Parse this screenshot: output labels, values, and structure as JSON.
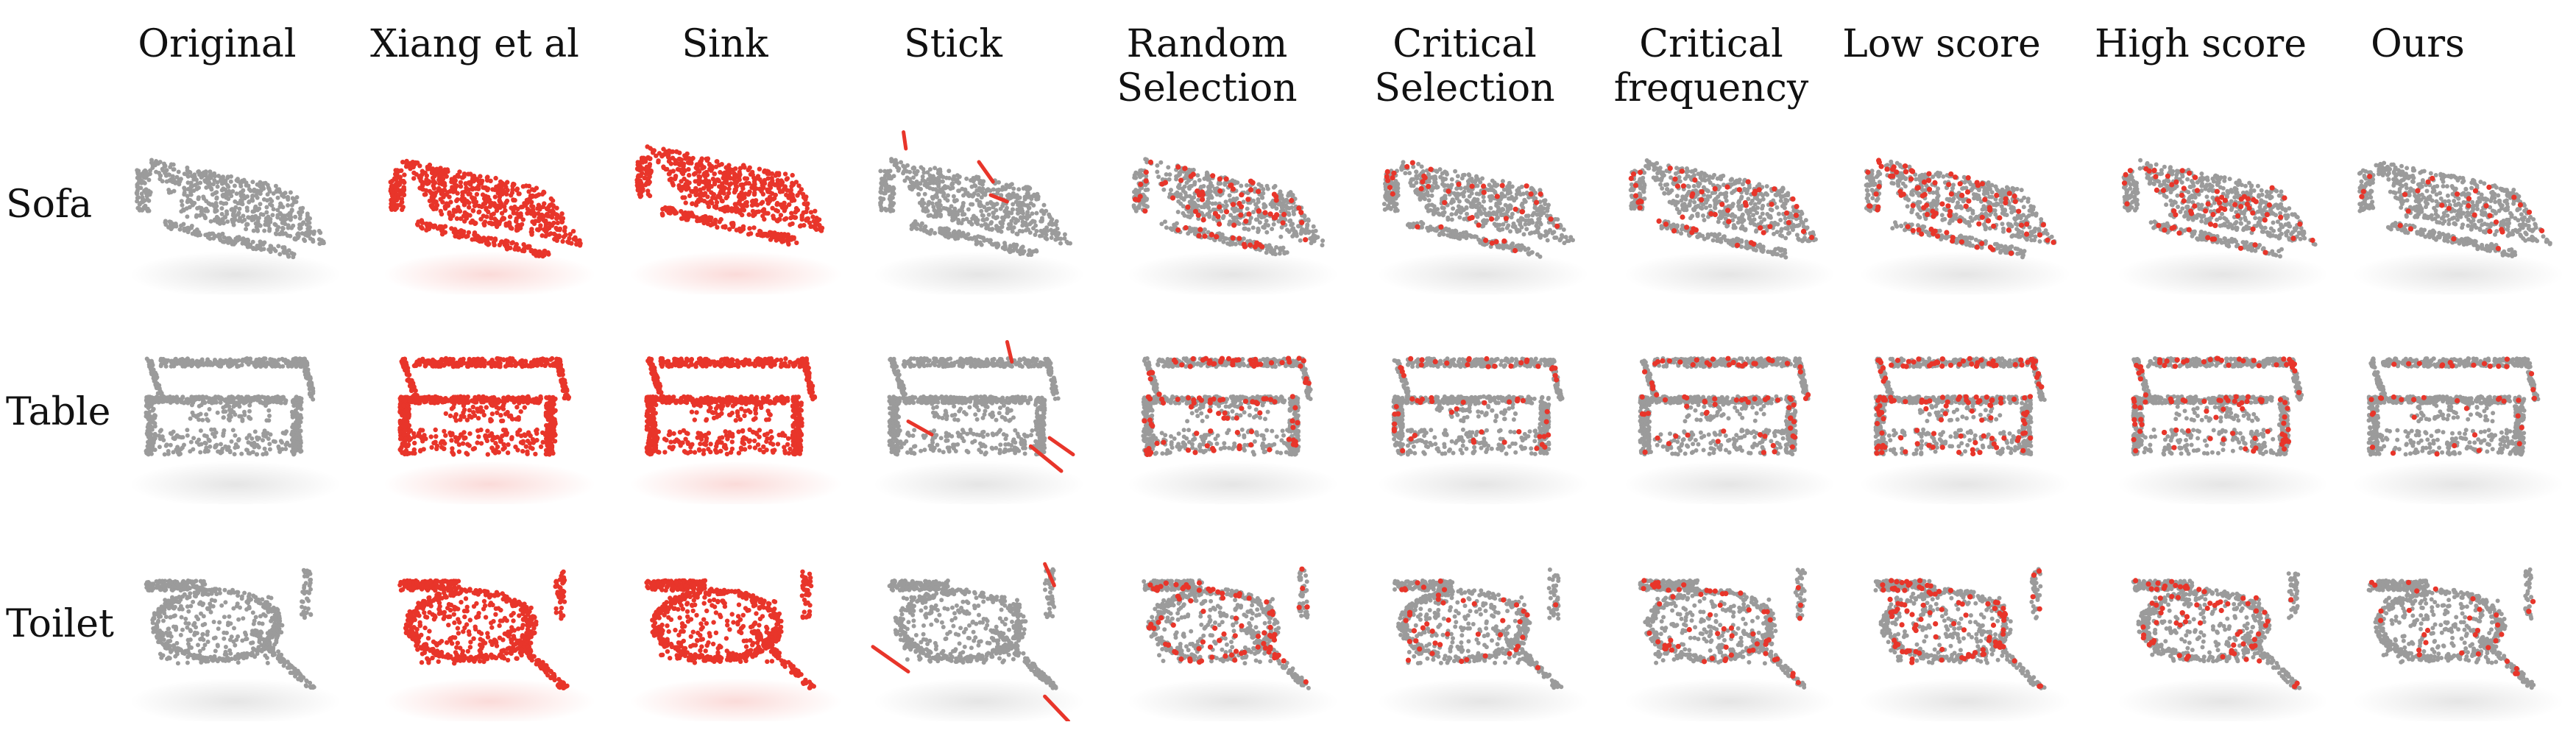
{
  "column_headers": [
    "Original",
    "Xiang et al",
    "Sink",
    "Stick",
    "Random\nSelection",
    "Critical\nSelection",
    "Critical\nfrequency",
    "Low score",
    "High score",
    "Ours"
  ],
  "row_labels": [
    "Sofa",
    "Table",
    "Toilet"
  ],
  "colors": {
    "point_gray": "#9b9b9b",
    "point_red": "#e8352a",
    "background": "#ffffff"
  }
}
